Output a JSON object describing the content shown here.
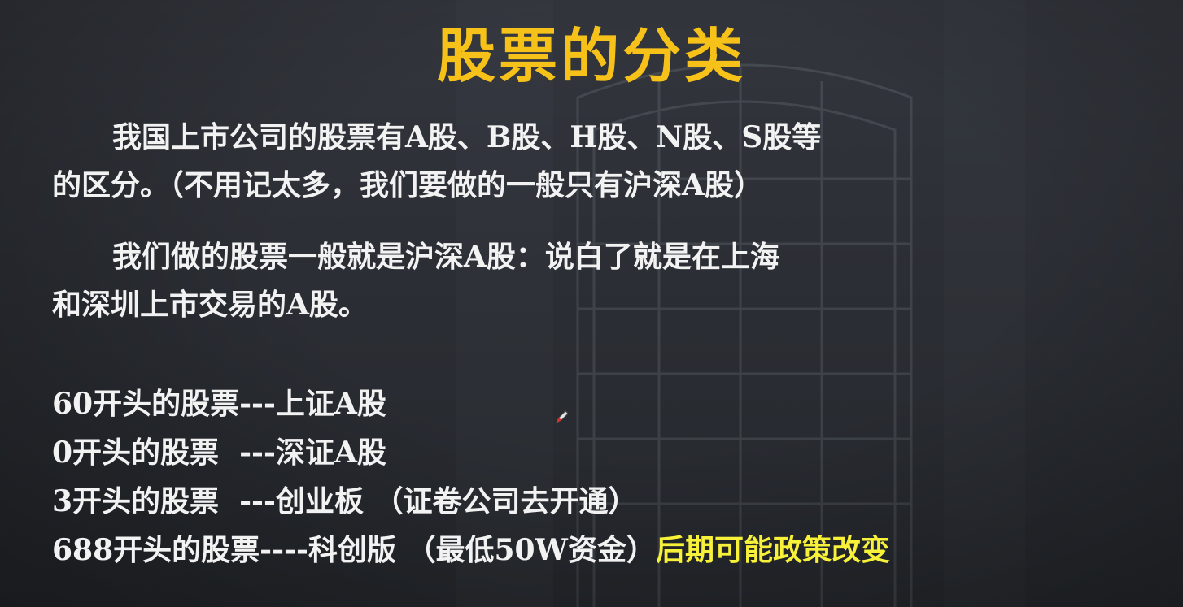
{
  "slide": {
    "title": "股票的分类",
    "paragraph1": {
      "line1": "我国上市公司的股票有A股、B股、H股、N股、S股等",
      "line2": "的区分。（不用记太多，我们要做的一般只有沪深A股）"
    },
    "paragraph2": {
      "line1": "我们做的股票一般就是沪深A股：说白了就是在上海",
      "line2": "和深圳上市交易的A股。"
    },
    "list": [
      {
        "text": "60开头的股票---上证A股"
      },
      {
        "text": "0开头的股票  ---深证A股"
      },
      {
        "text": "3开头的股票  ---创业板 （证卷公司去开通）"
      },
      {
        "text": "688开头的股票----科创版 （最低50W资金）",
        "highlight": "后期可能政策改变"
      }
    ],
    "colors": {
      "title": "#f6c21a",
      "text": "#f2f2f2",
      "highlight": "#f7f13a",
      "background": "#2b2e34"
    },
    "icons": [
      "pen-cursor-icon"
    ]
  }
}
